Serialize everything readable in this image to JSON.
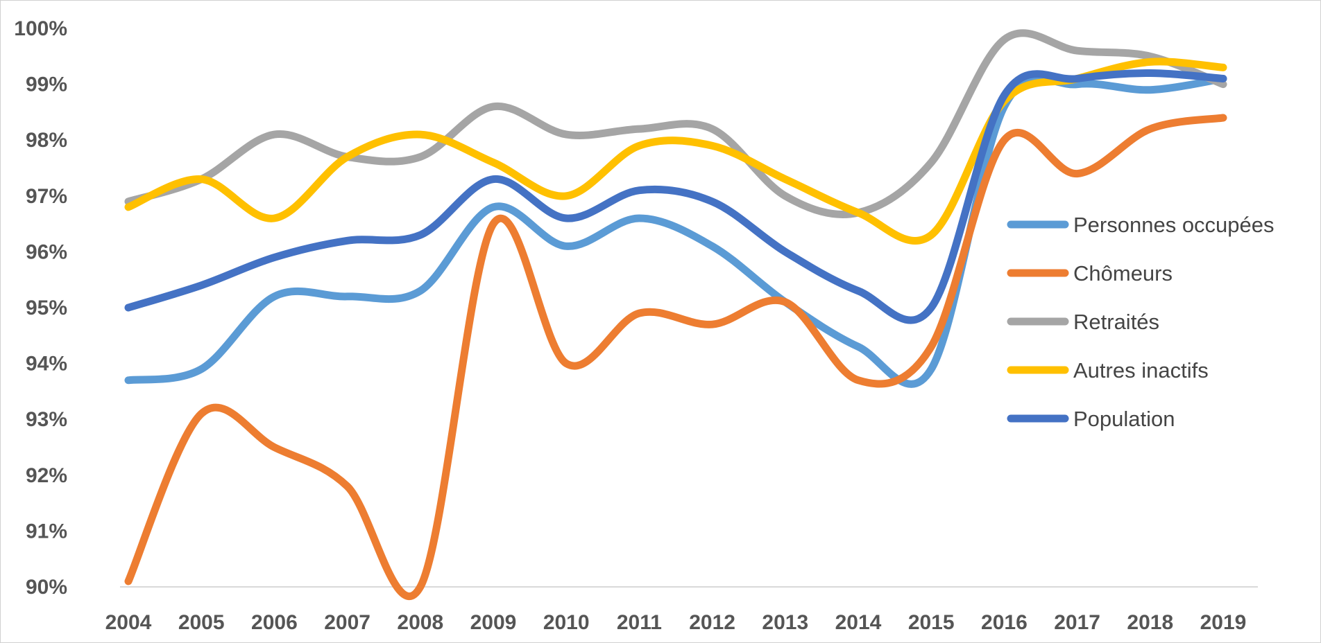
{
  "chart_data": {
    "type": "line",
    "title": "",
    "xlabel": "",
    "ylabel": "",
    "categories": [
      "2004",
      "2005",
      "2006",
      "2007",
      "2008",
      "2009",
      "2010",
      "2011",
      "2012",
      "2013",
      "2014",
      "2015",
      "2016",
      "2017",
      "2018",
      "2019"
    ],
    "y_tick_labels": [
      "90%",
      "91%",
      "92%",
      "93%",
      "94%",
      "95%",
      "96%",
      "97%",
      "98%",
      "99%",
      "100%"
    ],
    "ylim": [
      90,
      100
    ],
    "y_unit": "%",
    "grid": false,
    "legend_position": "right",
    "series": [
      {
        "name": "Personnes occupées",
        "color": "#5B9BD5",
        "values": [
          93.7,
          93.9,
          95.2,
          95.2,
          95.3,
          96.8,
          96.1,
          96.6,
          96.1,
          95.1,
          94.3,
          93.9,
          98.6,
          99.0,
          98.9,
          99.1
        ]
      },
      {
        "name": "Chômeurs",
        "color": "#ED7D31",
        "values": [
          90.1,
          93.1,
          92.5,
          91.8,
          90.0,
          96.5,
          94.0,
          94.9,
          94.7,
          95.1,
          93.7,
          94.3,
          98.0,
          97.4,
          98.2,
          98.4
        ]
      },
      {
        "name": "Retraités",
        "color": "#A5A5A5",
        "values": [
          96.9,
          97.3,
          98.1,
          97.7,
          97.7,
          98.6,
          98.1,
          98.2,
          98.2,
          97.0,
          96.7,
          97.6,
          99.8,
          99.6,
          99.5,
          99.0
        ]
      },
      {
        "name": "Autres inactifs",
        "color": "#FFC000",
        "values": [
          96.8,
          97.3,
          96.6,
          97.7,
          98.1,
          97.6,
          97.0,
          97.9,
          97.9,
          97.3,
          96.7,
          96.3,
          98.7,
          99.1,
          99.4,
          99.3
        ]
      },
      {
        "name": "Population",
        "color": "#4472C4",
        "values": [
          95.0,
          95.4,
          95.9,
          96.2,
          96.3,
          97.3,
          96.6,
          97.1,
          96.9,
          96.0,
          95.3,
          95.0,
          98.8,
          99.1,
          99.2,
          99.1
        ]
      }
    ]
  }
}
